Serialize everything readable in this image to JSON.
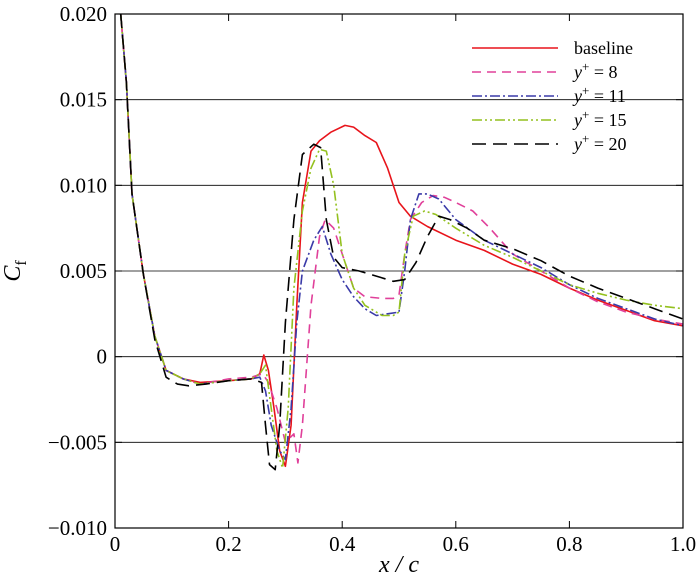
{
  "chart_data": {
    "type": "line",
    "title": "",
    "xlabel": "x / c",
    "ylabel": "Cf",
    "xlim": [
      0,
      1.0
    ],
    "ylim": [
      -0.01,
      0.02
    ],
    "x_ticks": [
      0,
      0.2,
      0.4,
      0.6,
      0.8,
      1.0
    ],
    "x_tick_labels": [
      "0",
      "0.2",
      "0.4",
      "0.6",
      "0.8",
      "1.0"
    ],
    "y_ticks": [
      -0.01,
      -0.005,
      0,
      0.005,
      0.01,
      0.015,
      0.02
    ],
    "y_tick_labels": [
      "−0.010",
      "−0.005",
      "0",
      "0.005",
      "0.010",
      "0.015",
      "0.020"
    ],
    "grid": "horizontal at y ticks",
    "legend_position": "top-right",
    "series": [
      {
        "name": "baseline",
        "color": "#e8141b",
        "dash": "solid",
        "points": [
          [
            0.01,
            0.02
          ],
          [
            0.02,
            0.016
          ],
          [
            0.03,
            0.0095
          ],
          [
            0.05,
            0.0048
          ],
          [
            0.07,
            0.0012
          ],
          [
            0.09,
            -0.0008
          ],
          [
            0.12,
            -0.0013
          ],
          [
            0.15,
            -0.0015
          ],
          [
            0.2,
            -0.0014
          ],
          [
            0.24,
            -0.0013
          ],
          [
            0.255,
            -0.001
          ],
          [
            0.262,
            0.0001
          ],
          [
            0.27,
            -0.0008
          ],
          [
            0.28,
            -0.003
          ],
          [
            0.29,
            -0.0055
          ],
          [
            0.3,
            -0.0064
          ],
          [
            0.31,
            -0.004
          ],
          [
            0.32,
            0.003
          ],
          [
            0.33,
            0.009
          ],
          [
            0.345,
            0.012
          ],
          [
            0.36,
            0.0126
          ],
          [
            0.38,
            0.0131
          ],
          [
            0.405,
            0.0135
          ],
          [
            0.42,
            0.0134
          ],
          [
            0.44,
            0.0129
          ],
          [
            0.46,
            0.0125
          ],
          [
            0.48,
            0.011
          ],
          [
            0.5,
            0.009
          ],
          [
            0.52,
            0.0082
          ],
          [
            0.55,
            0.0076
          ],
          [
            0.6,
            0.0068
          ],
          [
            0.65,
            0.0062
          ],
          [
            0.7,
            0.0054
          ],
          [
            0.75,
            0.0048
          ],
          [
            0.8,
            0.004
          ],
          [
            0.85,
            0.0033
          ],
          [
            0.9,
            0.0027
          ],
          [
            0.95,
            0.0021
          ],
          [
            1.0,
            0.0018
          ]
        ]
      },
      {
        "name": "y+=8",
        "label_main": "y",
        "label_sup": "+",
        "label_rest": " = 8",
        "color": "#e0409a",
        "dash": "9 6",
        "points": [
          [
            0.01,
            0.02
          ],
          [
            0.02,
            0.016
          ],
          [
            0.03,
            0.0095
          ],
          [
            0.05,
            0.0048
          ],
          [
            0.07,
            0.0012
          ],
          [
            0.09,
            -0.0008
          ],
          [
            0.12,
            -0.0013
          ],
          [
            0.15,
            -0.0016
          ],
          [
            0.2,
            -0.0013
          ],
          [
            0.24,
            -0.0012
          ],
          [
            0.26,
            -0.001
          ],
          [
            0.27,
            -0.0015
          ],
          [
            0.285,
            -0.003
          ],
          [
            0.3,
            -0.005
          ],
          [
            0.315,
            -0.0045
          ],
          [
            0.322,
            -0.0062
          ],
          [
            0.33,
            -0.004
          ],
          [
            0.345,
            0.003
          ],
          [
            0.36,
            0.007
          ],
          [
            0.37,
            0.008
          ],
          [
            0.385,
            0.0075
          ],
          [
            0.4,
            0.006
          ],
          [
            0.42,
            0.004
          ],
          [
            0.44,
            0.0035
          ],
          [
            0.47,
            0.0034
          ],
          [
            0.49,
            0.0034
          ],
          [
            0.5,
            0.0036
          ],
          [
            0.51,
            0.006
          ],
          [
            0.52,
            0.008
          ],
          [
            0.54,
            0.009
          ],
          [
            0.56,
            0.0094
          ],
          [
            0.58,
            0.0093
          ],
          [
            0.6,
            0.009
          ],
          [
            0.63,
            0.0085
          ],
          [
            0.66,
            0.0075
          ],
          [
            0.7,
            0.006
          ],
          [
            0.75,
            0.005
          ],
          [
            0.8,
            0.004
          ],
          [
            0.85,
            0.0032
          ],
          [
            0.9,
            0.0026
          ],
          [
            0.95,
            0.0022
          ],
          [
            1.0,
            0.0019
          ]
        ]
      },
      {
        "name": "y+=11",
        "label_main": "y",
        "label_sup": "+",
        "label_rest": " = 11",
        "color": "#3a3aa8",
        "dash": "10 3 2 3",
        "points": [
          [
            0.01,
            0.02
          ],
          [
            0.02,
            0.016
          ],
          [
            0.03,
            0.0095
          ],
          [
            0.05,
            0.0048
          ],
          [
            0.07,
            0.0012
          ],
          [
            0.09,
            -0.0008
          ],
          [
            0.12,
            -0.0013
          ],
          [
            0.15,
            -0.0016
          ],
          [
            0.2,
            -0.0014
          ],
          [
            0.24,
            -0.0013
          ],
          [
            0.255,
            -0.0012
          ],
          [
            0.265,
            -0.002
          ],
          [
            0.275,
            -0.004
          ],
          [
            0.29,
            -0.0055
          ],
          [
            0.3,
            -0.006
          ],
          [
            0.31,
            -0.003
          ],
          [
            0.32,
            0.002
          ],
          [
            0.33,
            0.005
          ],
          [
            0.35,
            0.0068
          ],
          [
            0.365,
            0.0076
          ],
          [
            0.38,
            0.006
          ],
          [
            0.4,
            0.0045
          ],
          [
            0.42,
            0.0035
          ],
          [
            0.44,
            0.0028
          ],
          [
            0.46,
            0.0024
          ],
          [
            0.48,
            0.0025
          ],
          [
            0.5,
            0.0026
          ],
          [
            0.51,
            0.005
          ],
          [
            0.52,
            0.008
          ],
          [
            0.535,
            0.0095
          ],
          [
            0.55,
            0.0095
          ],
          [
            0.57,
            0.0092
          ],
          [
            0.6,
            0.008
          ],
          [
            0.65,
            0.0068
          ],
          [
            0.7,
            0.006
          ],
          [
            0.75,
            0.0052
          ],
          [
            0.8,
            0.0042
          ],
          [
            0.85,
            0.0034
          ],
          [
            0.9,
            0.0028
          ],
          [
            0.95,
            0.0022
          ],
          [
            1.0,
            0.0018
          ]
        ]
      },
      {
        "name": "y+=15",
        "label_main": "y",
        "label_sup": "+",
        "label_rest": " = 15",
        "color": "#94c11f",
        "dash": "10 3 2 3 2 3",
        "points": [
          [
            0.01,
            0.02
          ],
          [
            0.02,
            0.016
          ],
          [
            0.03,
            0.0095
          ],
          [
            0.05,
            0.0048
          ],
          [
            0.07,
            0.0012
          ],
          [
            0.09,
            -0.0008
          ],
          [
            0.12,
            -0.0013
          ],
          [
            0.15,
            -0.0016
          ],
          [
            0.2,
            -0.0014
          ],
          [
            0.24,
            -0.0013
          ],
          [
            0.255,
            -0.001
          ],
          [
            0.265,
            -0.0005
          ],
          [
            0.275,
            -0.003
          ],
          [
            0.285,
            -0.0055
          ],
          [
            0.295,
            -0.0065
          ],
          [
            0.305,
            -0.003
          ],
          [
            0.315,
            0.004
          ],
          [
            0.33,
            0.0085
          ],
          [
            0.345,
            0.011
          ],
          [
            0.36,
            0.0121
          ],
          [
            0.372,
            0.012
          ],
          [
            0.385,
            0.01
          ],
          [
            0.4,
            0.006
          ],
          [
            0.42,
            0.004
          ],
          [
            0.44,
            0.003
          ],
          [
            0.47,
            0.0024
          ],
          [
            0.49,
            0.0024
          ],
          [
            0.5,
            0.0026
          ],
          [
            0.51,
            0.006
          ],
          [
            0.525,
            0.0082
          ],
          [
            0.545,
            0.0085
          ],
          [
            0.565,
            0.0083
          ],
          [
            0.6,
            0.0075
          ],
          [
            0.65,
            0.0065
          ],
          [
            0.7,
            0.0058
          ],
          [
            0.75,
            0.005
          ],
          [
            0.8,
            0.0042
          ],
          [
            0.85,
            0.0037
          ],
          [
            0.9,
            0.0033
          ],
          [
            0.95,
            0.003
          ],
          [
            1.0,
            0.0028
          ]
        ]
      },
      {
        "name": "y+=20",
        "label_main": "y",
        "label_sup": "+",
        "label_rest": " = 20",
        "color": "#000000",
        "dash": "14 7",
        "points": [
          [
            0.01,
            0.02
          ],
          [
            0.02,
            0.016
          ],
          [
            0.03,
            0.0095
          ],
          [
            0.05,
            0.0048
          ],
          [
            0.07,
            0.001
          ],
          [
            0.09,
            -0.0012
          ],
          [
            0.11,
            -0.0016
          ],
          [
            0.13,
            -0.0017
          ],
          [
            0.16,
            -0.0016
          ],
          [
            0.2,
            -0.0014
          ],
          [
            0.24,
            -0.0013
          ],
          [
            0.258,
            -0.0015
          ],
          [
            0.265,
            -0.004
          ],
          [
            0.272,
            -0.0063
          ],
          [
            0.282,
            -0.0066
          ],
          [
            0.29,
            -0.004
          ],
          [
            0.3,
            0.002
          ],
          [
            0.315,
            0.008
          ],
          [
            0.33,
            0.0118
          ],
          [
            0.35,
            0.0124
          ],
          [
            0.362,
            0.0122
          ],
          [
            0.372,
            0.008
          ],
          [
            0.385,
            0.0058
          ],
          [
            0.4,
            0.0052
          ],
          [
            0.43,
            0.005
          ],
          [
            0.46,
            0.0047
          ],
          [
            0.49,
            0.0044
          ],
          [
            0.51,
            0.0045
          ],
          [
            0.53,
            0.0055
          ],
          [
            0.55,
            0.007
          ],
          [
            0.57,
            0.0082
          ],
          [
            0.59,
            0.008
          ],
          [
            0.62,
            0.0075
          ],
          [
            0.65,
            0.0068
          ],
          [
            0.7,
            0.0063
          ],
          [
            0.75,
            0.0056
          ],
          [
            0.8,
            0.0047
          ],
          [
            0.85,
            0.004
          ],
          [
            0.9,
            0.0034
          ],
          [
            0.95,
            0.0028
          ],
          [
            1.0,
            0.0022
          ]
        ]
      }
    ]
  }
}
